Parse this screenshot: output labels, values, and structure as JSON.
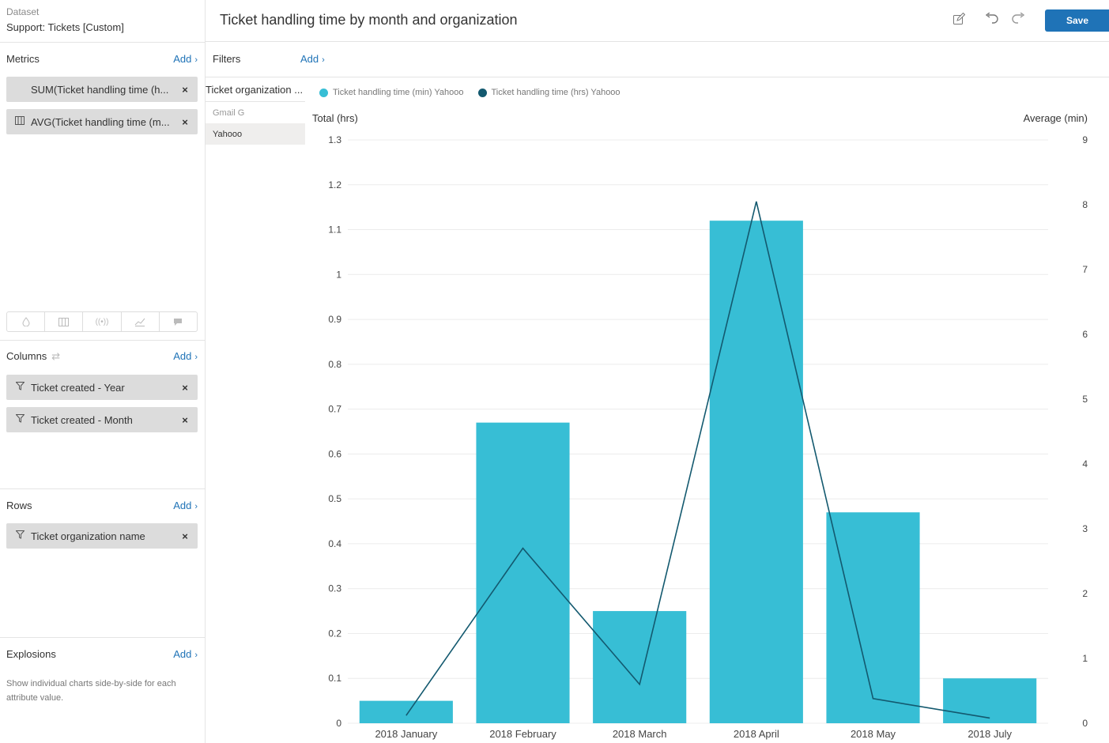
{
  "sidebar": {
    "dataset_label": "Dataset",
    "dataset_name": "Support: Tickets [Custom]",
    "metrics": {
      "title": "Metrics",
      "add": "Add",
      "items": [
        {
          "label": "SUM(Ticket handling time (h...",
          "icon": "none"
        },
        {
          "label": "AVG(Ticket handling time (m...",
          "icon": "column-chart-icon"
        }
      ]
    },
    "chart_toggle_icons": [
      "drop-icon",
      "columns-icon",
      "broadcast-icon",
      "trend-icon",
      "comment-icon"
    ],
    "columns": {
      "title": "Columns",
      "add": "Add",
      "items": [
        {
          "label": "Ticket created - Year",
          "icon": "filter-icon"
        },
        {
          "label": "Ticket created - Month",
          "icon": "filter-icon"
        }
      ]
    },
    "rows": {
      "title": "Rows",
      "add": "Add",
      "items": [
        {
          "label": "Ticket organization name",
          "icon": "filter-icon"
        }
      ]
    },
    "explosions": {
      "title": "Explosions",
      "add": "Add",
      "description": "Show individual charts side-by-side for each attribute value."
    }
  },
  "header": {
    "title": "Ticket handling time by month and organization",
    "save_label": "Save"
  },
  "filters": {
    "label": "Filters",
    "add": "Add"
  },
  "row_selector": {
    "title": "Ticket organization ...",
    "items": [
      {
        "label": "Gmail G",
        "selected": false
      },
      {
        "label": "Yahooo",
        "selected": true
      }
    ]
  },
  "colors": {
    "accent": "#1f73b7",
    "bar": "#37bed5",
    "line": "#13596f"
  },
  "chart_data": {
    "type": "bar",
    "categories": [
      "2018 January",
      "2018 February",
      "2018 March",
      "2018 April",
      "2018 May",
      "2018 July"
    ],
    "series": [
      {
        "name": "Ticket handling time (min) Yahooo",
        "type": "bar",
        "axis": "left",
        "values": [
          0.05,
          0.67,
          0.25,
          1.12,
          0.47,
          0.1
        ]
      },
      {
        "name": "Ticket handling time (hrs) Yahooo",
        "type": "line",
        "axis": "right",
        "values": [
          0.12,
          2.7,
          0.6,
          8.05,
          0.38,
          0.08
        ]
      }
    ],
    "ylabel": "Total (hrs)",
    "ylabel_right": "Average (min)",
    "ylim": [
      0,
      1.3
    ],
    "ylim_right": [
      0,
      9
    ],
    "yticks": [
      "0",
      "0.1",
      "0.2",
      "0.3",
      "0.4",
      "0.5",
      "0.6",
      "0.7",
      "0.8",
      "0.9",
      "1",
      "1.1",
      "1.2",
      "1.3"
    ],
    "yticks_right": [
      "0",
      "1",
      "2",
      "3",
      "4",
      "5",
      "6",
      "7",
      "8",
      "9"
    ],
    "grid": true,
    "legend": "top-left"
  }
}
